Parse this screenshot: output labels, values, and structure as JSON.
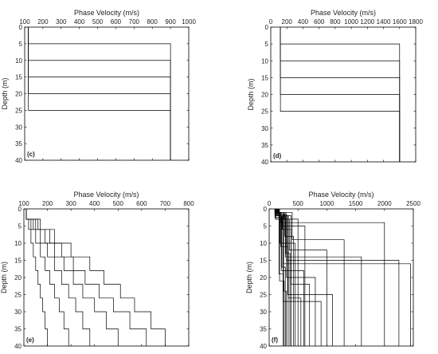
{
  "chart_data": [
    {
      "type": "line",
      "panel_label": "(c)",
      "xlabel": "Phase Velocity (m/s)",
      "ylabel": "Depth (m)",
      "xlim": [
        100,
        1000
      ],
      "ylim": [
        0,
        40
      ],
      "xticks": [
        100,
        200,
        300,
        400,
        500,
        600,
        700,
        800,
        900,
        1000
      ],
      "yticks": [
        0,
        5,
        10,
        15,
        20,
        25,
        30,
        35,
        40
      ],
      "series": [
        {
          "x": [
            120,
            120,
            900,
            900
          ],
          "y": [
            0,
            5,
            5,
            40
          ]
        },
        {
          "x": [
            120,
            120,
            900,
            900
          ],
          "y": [
            0,
            10,
            10,
            40
          ]
        },
        {
          "x": [
            120,
            120,
            900,
            900
          ],
          "y": [
            0,
            15,
            15,
            40
          ]
        },
        {
          "x": [
            120,
            120,
            900,
            900
          ],
          "y": [
            0,
            20,
            20,
            40
          ]
        },
        {
          "x": [
            120,
            120,
            900,
            900
          ],
          "y": [
            0,
            25,
            25,
            40
          ]
        }
      ]
    },
    {
      "type": "line",
      "panel_label": "(d)",
      "xlabel": "Phase Velocity (m/s)",
      "ylabel": "Depth (m)",
      "xlim": [
        0,
        1800
      ],
      "ylim": [
        0,
        40
      ],
      "xticks": [
        0,
        200,
        400,
        600,
        800,
        1000,
        1200,
        1400,
        1600,
        1800
      ],
      "yticks": [
        0,
        5,
        10,
        15,
        20,
        25,
        30,
        35,
        40
      ],
      "series": [
        {
          "x": [
            120,
            120,
            1600,
            1600
          ],
          "y": [
            0,
            5,
            5,
            40
          ]
        },
        {
          "x": [
            120,
            120,
            1600,
            1600
          ],
          "y": [
            0,
            10,
            10,
            40
          ]
        },
        {
          "x": [
            120,
            120,
            1600,
            1600
          ],
          "y": [
            0,
            15,
            15,
            40
          ]
        },
        {
          "x": [
            120,
            120,
            1600,
            1600
          ],
          "y": [
            0,
            20,
            20,
            40
          ]
        },
        {
          "x": [
            120,
            120,
            1600,
            1600
          ],
          "y": [
            0,
            25,
            25,
            40
          ]
        }
      ]
    },
    {
      "type": "line",
      "panel_label": "(e)",
      "xlabel": "Phase Velocity (m/s)",
      "ylabel": "Depth (m)",
      "xlim": [
        100,
        800
      ],
      "ylim": [
        0,
        40
      ],
      "xticks": [
        100,
        200,
        300,
        400,
        500,
        600,
        700,
        800
      ],
      "yticks": [
        0,
        5,
        10,
        15,
        20,
        25,
        30,
        35,
        40
      ],
      "series": [
        {
          "x": [
            110,
            110,
            120,
            120,
            130,
            130,
            140,
            140,
            150,
            150,
            160,
            160,
            170,
            170,
            180,
            180,
            190,
            190,
            200,
            200
          ],
          "y": [
            0,
            3,
            3,
            6,
            6,
            10,
            10,
            14,
            14,
            18,
            18,
            22,
            22,
            26,
            26,
            30,
            30,
            35,
            35,
            40
          ]
        },
        {
          "x": [
            110,
            110,
            130,
            130,
            150,
            150,
            170,
            170,
            190,
            190,
            210,
            210,
            230,
            230,
            250,
            250,
            270,
            270,
            290,
            290
          ],
          "y": [
            0,
            3,
            3,
            6,
            6,
            10,
            10,
            14,
            14,
            18,
            18,
            22,
            22,
            26,
            26,
            30,
            30,
            35,
            35,
            40
          ]
        },
        {
          "x": [
            110,
            110,
            140,
            140,
            170,
            170,
            200,
            200,
            230,
            230,
            260,
            260,
            290,
            290,
            320,
            320,
            350,
            350,
            380,
            380
          ],
          "y": [
            0,
            3,
            3,
            6,
            6,
            10,
            10,
            14,
            14,
            18,
            18,
            22,
            22,
            26,
            26,
            30,
            30,
            35,
            35,
            40
          ]
        },
        {
          "x": [
            110,
            110,
            150,
            150,
            190,
            190,
            230,
            230,
            270,
            270,
            310,
            310,
            350,
            350,
            400,
            400,
            450,
            450,
            500,
            500
          ],
          "y": [
            0,
            3,
            3,
            6,
            6,
            10,
            10,
            14,
            14,
            18,
            18,
            22,
            22,
            26,
            26,
            30,
            30,
            35,
            35,
            40
          ]
        },
        {
          "x": [
            110,
            110,
            160,
            160,
            210,
            210,
            260,
            260,
            310,
            310,
            360,
            360,
            420,
            420,
            480,
            480,
            550,
            550,
            620,
            620
          ],
          "y": [
            0,
            3,
            3,
            6,
            6,
            10,
            10,
            14,
            14,
            18,
            18,
            22,
            22,
            26,
            26,
            30,
            30,
            35,
            35,
            40
          ]
        },
        {
          "x": [
            110,
            110,
            170,
            170,
            230,
            230,
            300,
            300,
            380,
            380,
            440,
            440,
            510,
            510,
            570,
            570,
            640,
            640,
            700,
            700
          ],
          "y": [
            0,
            3,
            3,
            6,
            6,
            10,
            10,
            14,
            14,
            18,
            18,
            22,
            22,
            26,
            26,
            30,
            30,
            35,
            35,
            40
          ]
        }
      ]
    },
    {
      "type": "line",
      "panel_label": "(f)",
      "xlabel": "Phase Velocity (m/s)",
      "ylabel": "Depth (m)",
      "xlim": [
        0,
        2500
      ],
      "ylim": [
        0,
        40
      ],
      "xticks": [
        0,
        500,
        1000,
        1500,
        2000,
        2500
      ],
      "yticks": [
        0,
        5,
        10,
        15,
        20,
        25,
        30,
        35,
        40
      ],
      "series": [
        {
          "x": [
            100,
            100,
            200,
            200,
            2000,
            2000
          ],
          "y": [
            0,
            1,
            1,
            4,
            4,
            40
          ]
        },
        {
          "x": [
            120,
            120,
            250,
            250,
            2450,
            2450
          ],
          "y": [
            0,
            2,
            2,
            16,
            16,
            40
          ]
        },
        {
          "x": [
            150,
            150,
            300,
            300,
            2250,
            2250
          ],
          "y": [
            0,
            1.5,
            1.5,
            15,
            15,
            40
          ]
        },
        {
          "x": [
            110,
            110,
            350,
            350,
            1000,
            1000
          ],
          "y": [
            0,
            3,
            3,
            12,
            12,
            40
          ]
        },
        {
          "x": [
            130,
            130,
            280,
            280,
            1600,
            1600
          ],
          "y": [
            0,
            2,
            2,
            14,
            14,
            40
          ]
        },
        {
          "x": [
            180,
            180,
            400,
            400,
            1300,
            1300
          ],
          "y": [
            0,
            1,
            1,
            9,
            9,
            40
          ]
        },
        {
          "x": [
            100,
            100,
            220,
            220,
            620,
            620
          ],
          "y": [
            0,
            2.5,
            2.5,
            5,
            5,
            40
          ]
        },
        {
          "x": [
            140,
            140,
            260,
            260,
            500,
            500
          ],
          "y": [
            0,
            1,
            1,
            3,
            3,
            40
          ]
        },
        {
          "x": [
            160,
            160,
            320,
            320,
            1100,
            1100
          ],
          "y": [
            0,
            2,
            2,
            25,
            25,
            40
          ]
        },
        {
          "x": [
            120,
            120,
            240,
            240,
            900,
            900
          ],
          "y": [
            0,
            1.5,
            1.5,
            27,
            27,
            40
          ]
        },
        {
          "x": [
            110,
            110,
            300,
            300,
            800,
            800
          ],
          "y": [
            0,
            3,
            3,
            20,
            20,
            40
          ]
        },
        {
          "x": [
            150,
            150,
            380,
            380,
            700,
            700
          ],
          "y": [
            0,
            2,
            2,
            22,
            22,
            40
          ]
        },
        {
          "x": [
            130,
            130,
            210,
            210,
            600,
            600
          ],
          "y": [
            0,
            1,
            1,
            18,
            18,
            40
          ]
        },
        {
          "x": [
            170,
            170,
            330,
            330,
            550,
            550
          ],
          "y": [
            0,
            2,
            2,
            26,
            26,
            40
          ]
        },
        {
          "x": [
            100,
            100,
            190,
            190,
            450,
            450
          ],
          "y": [
            0,
            1,
            1,
            10,
            10,
            40
          ]
        },
        {
          "x": [
            140,
            140,
            270,
            270,
            420,
            420
          ],
          "y": [
            0,
            1.5,
            1.5,
            8,
            8,
            40
          ]
        },
        {
          "x": [
            120,
            120,
            230,
            230,
            380,
            380
          ],
          "y": [
            0,
            2,
            2,
            6,
            6,
            40
          ]
        },
        {
          "x": [
            160,
            160,
            290,
            290,
            360,
            360
          ],
          "y": [
            0,
            1,
            1,
            13,
            13,
            40
          ]
        },
        {
          "x": [
            110,
            110,
            200,
            200,
            330,
            330
          ],
          "y": [
            0,
            2.5,
            2.5,
            11,
            11,
            40
          ]
        },
        {
          "x": [
            130,
            130,
            250,
            250,
            300,
            300
          ],
          "y": [
            0,
            1,
            1,
            24,
            24,
            40
          ]
        },
        {
          "x": [
            150,
            150,
            220,
            220,
            280,
            280
          ],
          "y": [
            0,
            2,
            2,
            17,
            17,
            40
          ]
        },
        {
          "x": [
            120,
            120,
            180,
            180,
            260,
            260
          ],
          "y": [
            0,
            1,
            1,
            21,
            21,
            40
          ]
        },
        {
          "x": [
            100,
            100,
            170,
            170,
            240,
            240
          ],
          "y": [
            0,
            1.5,
            1.5,
            19,
            19,
            40
          ]
        }
      ]
    }
  ]
}
